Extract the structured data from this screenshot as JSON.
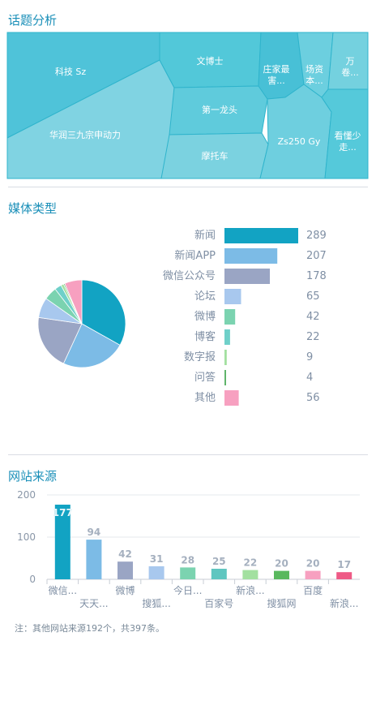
{
  "sections": {
    "topic": "话题分析",
    "media": "媒体类型",
    "site": "网站来源"
  },
  "note": "注：其他网站来源192个，共397条。",
  "topic_cells": [
    {
      "lines": [
        "科技 Sz"
      ],
      "color": "#4fc3d9"
    },
    {
      "lines": [
        "华润三九宗申动力"
      ],
      "color": "#80d3e2"
    },
    {
      "lines": [
        "文博士"
      ],
      "color": "#52c8d9"
    },
    {
      "lines": [
        "第一龙头"
      ],
      "color": "#5fcbdc"
    },
    {
      "lines": [
        "摩托车"
      ],
      "color": "#7bd2e0"
    },
    {
      "lines": [
        "庄家最",
        "害..."
      ],
      "color": "#48c0d6"
    },
    {
      "lines": [
        "场资",
        "本..."
      ],
      "color": "#6ccfdf"
    },
    {
      "lines": [
        "万",
        "卷..."
      ],
      "color": "#74d1df"
    },
    {
      "lines": [
        "Zs250 Gy"
      ],
      "color": "#6ecfdf"
    },
    {
      "lines": [
        "看懂少",
        "走..."
      ],
      "color": "#55c9da"
    }
  ],
  "chart_data": [
    {
      "type": "bar",
      "title": "媒体类型",
      "categories": [
        "新闻",
        "新闻APP",
        "微信公众号",
        "论坛",
        "微博",
        "博客",
        "数字报",
        "问答",
        "其他"
      ],
      "values": [
        289,
        207,
        178,
        65,
        42,
        22,
        9,
        4,
        56
      ],
      "colors": [
        "#12a3c3",
        "#7cbbe6",
        "#9aa5c4",
        "#a8c8ee",
        "#7bd3b0",
        "#6fd0c9",
        "#a3e0a0",
        "#5fb46b",
        "#f7a0c0"
      ],
      "pie": true
    },
    {
      "type": "bar",
      "title": "网站来源",
      "categories": [
        "微信...",
        "天天...",
        "微博",
        "搜狐...",
        "今日...",
        "百家号",
        "新浪...",
        "搜狐网",
        "百度",
        "新浪..."
      ],
      "values": [
        177,
        94,
        42,
        31,
        28,
        25,
        22,
        20,
        20,
        17
      ],
      "colors": [
        "#12a3c3",
        "#7cbbe6",
        "#9aa5c4",
        "#a8c8ee",
        "#7bd3b0",
        "#5fc6c0",
        "#a3e0a0",
        "#59b85e",
        "#f7a0c0",
        "#ee5a86"
      ],
      "ylim": [
        0,
        200
      ],
      "yticks": [
        0,
        100,
        200
      ]
    }
  ]
}
